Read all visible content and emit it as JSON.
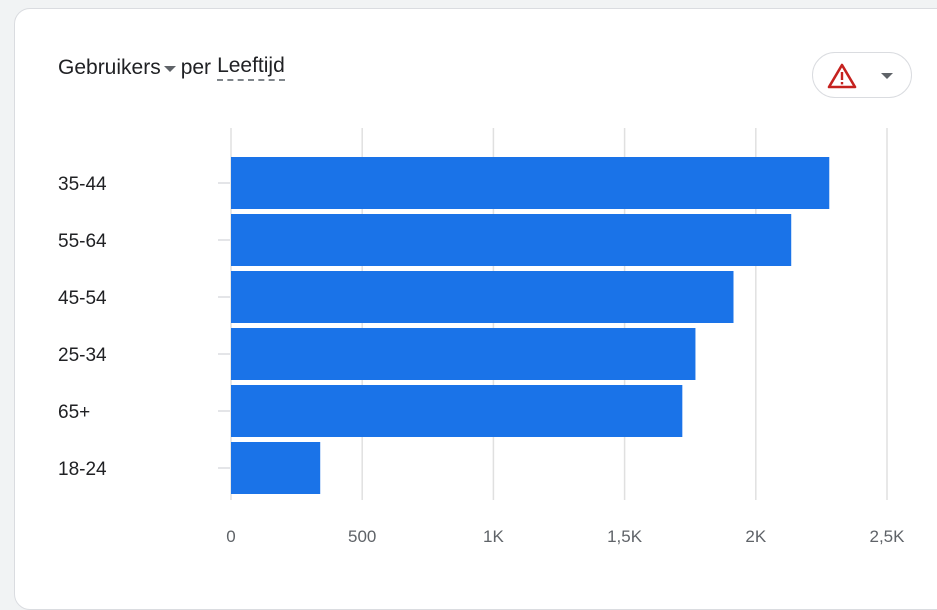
{
  "header": {
    "metric_label": "Gebruikers",
    "connector": "per",
    "dimension_label": "Leeftijd"
  },
  "colors": {
    "bar": "#1a73e8",
    "warning": "#c5221f",
    "grid": "#e0e0e0"
  },
  "icons": {
    "warning": "warning-triangle-icon",
    "dropdown": "chevron-down-icon"
  },
  "chart_data": {
    "type": "bar",
    "orientation": "horizontal",
    "categories": [
      "35-44",
      "55-64",
      "45-54",
      "25-34",
      "65+",
      "18-24"
    ],
    "values": [
      2280,
      2135,
      1915,
      1770,
      1720,
      340
    ],
    "xticks": [
      "0",
      "500",
      "1K",
      "1,5K",
      "2K",
      "2,5K"
    ],
    "xlim": [
      0,
      2500
    ],
    "grid": true,
    "title": "",
    "xlabel": "",
    "ylabel": ""
  }
}
